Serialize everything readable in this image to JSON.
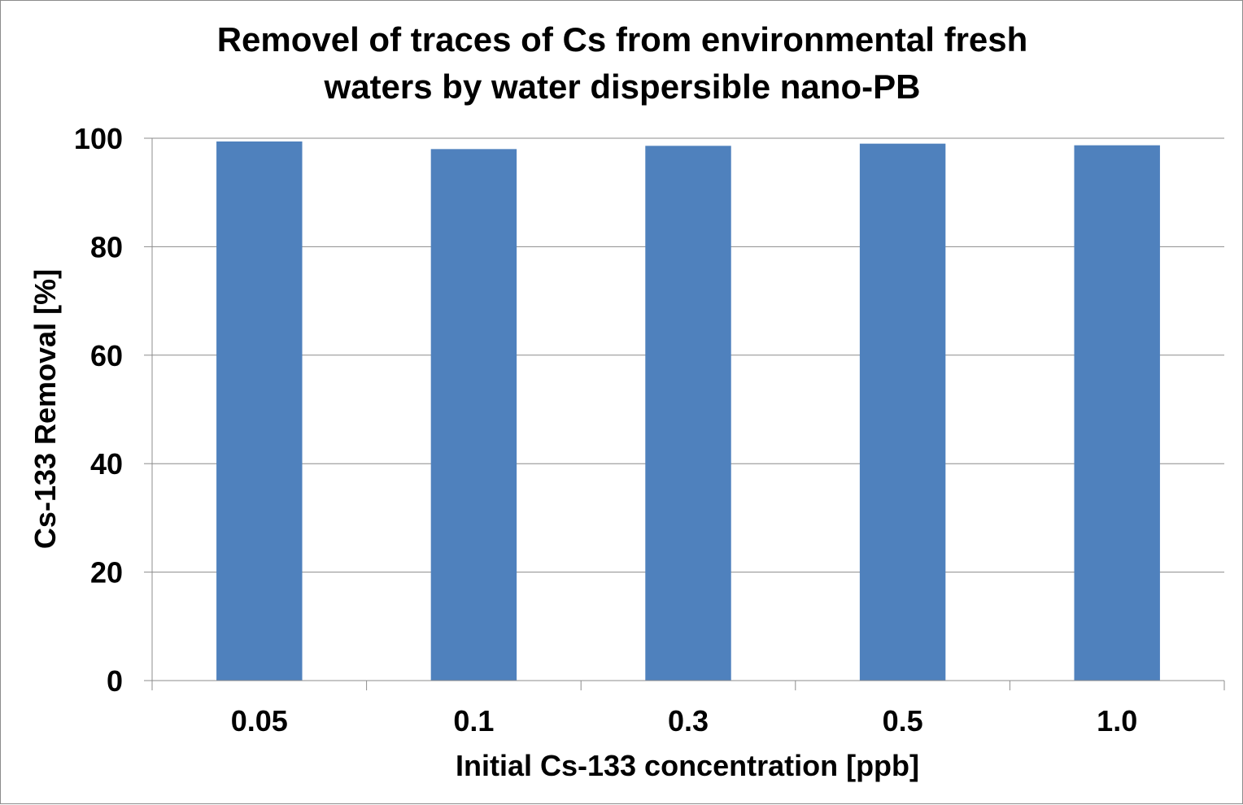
{
  "chart_data": {
    "type": "bar",
    "title_lines": [
      "Removel of traces of Cs from environmental fresh",
      "waters by water dispersible nano-PB"
    ],
    "xlabel": "Initial Cs-133 concentration [ppb]",
    "ylabel": "Cs-133 Removal [%]",
    "categories": [
      "0.05",
      "0.1",
      "0.3",
      "0.5",
      "1.0"
    ],
    "values": [
      99.4,
      98.0,
      98.6,
      99.0,
      98.7
    ],
    "ylim": [
      0,
      100
    ],
    "yticks": [
      "0",
      "20",
      "40",
      "60",
      "80",
      "100"
    ],
    "grid": true,
    "legend": "none",
    "bar_color": "#4f81bd",
    "grid_color": "#8c8c8c"
  }
}
